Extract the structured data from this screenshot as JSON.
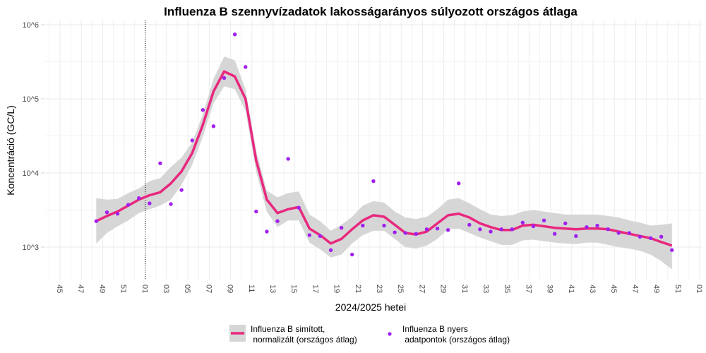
{
  "chart_data": {
    "type": "line",
    "title": "Influenza B szennyvízadatok lakosságarányos súlyozott országos átlaga",
    "xlabel": "2024/2025 hetei",
    "ylabel": "Koncentráció (GC/L)",
    "y_scale": "log10",
    "ylim": [
      372,
      1170000
    ],
    "xlim": [
      "2024-W45",
      "2026-W01"
    ],
    "grid": true,
    "legend_position": "bottom",
    "y_ticks": [
      {
        "value": 1000,
        "label": "10^3"
      },
      {
        "value": 10000,
        "label": "10^4"
      },
      {
        "value": 100000,
        "label": "10^5"
      },
      {
        "value": 1000000,
        "label": "10^6"
      }
    ],
    "x_ticks": [
      {
        "week": "2024-W45",
        "label": "45"
      },
      {
        "week": "2024-W47",
        "label": "47"
      },
      {
        "week": "2024-W49",
        "label": "49"
      },
      {
        "week": "2024-W51",
        "label": "51"
      },
      {
        "week": "2025-W01",
        "label": "01"
      },
      {
        "week": "2025-W03",
        "label": "03"
      },
      {
        "week": "2025-W05",
        "label": "05"
      },
      {
        "week": "2025-W07",
        "label": "07"
      },
      {
        "week": "2025-W09",
        "label": "09"
      },
      {
        "week": "2025-W11",
        "label": "11"
      },
      {
        "week": "2025-W13",
        "label": "13"
      },
      {
        "week": "2025-W15",
        "label": "15"
      },
      {
        "week": "2025-W17",
        "label": "17"
      },
      {
        "week": "2025-W19",
        "label": "19"
      },
      {
        "week": "2025-W21",
        "label": "21"
      },
      {
        "week": "2025-W23",
        "label": "23"
      },
      {
        "week": "2025-W25",
        "label": "25"
      },
      {
        "week": "2025-W27",
        "label": "27"
      },
      {
        "week": "2025-W29",
        "label": "29"
      },
      {
        "week": "2025-W31",
        "label": "31"
      },
      {
        "week": "2025-W33",
        "label": "33"
      },
      {
        "week": "2025-W35",
        "label": "35"
      },
      {
        "week": "2025-W37",
        "label": "37"
      },
      {
        "week": "2025-W39",
        "label": "39"
      },
      {
        "week": "2025-W41",
        "label": "41"
      },
      {
        "week": "2025-W43",
        "label": "43"
      },
      {
        "week": "2025-W45",
        "label": "45"
      },
      {
        "week": "2025-W47",
        "label": "47"
      },
      {
        "week": "2025-W49",
        "label": "49"
      },
      {
        "week": "2025-W51",
        "label": "51"
      },
      {
        "week": "2026-W01",
        "label": "01"
      }
    ],
    "vline": {
      "week": "2025-W01",
      "style": "dotted"
    },
    "weeks": [
      "2024-W48",
      "2024-W49",
      "2024-W50",
      "2024-W51",
      "2024-W52",
      "2025-W01",
      "2025-W02",
      "2025-W03",
      "2025-W04",
      "2025-W05",
      "2025-W06",
      "2025-W07",
      "2025-W08",
      "2025-W09",
      "2025-W10",
      "2025-W11",
      "2025-W12",
      "2025-W13",
      "2025-W14",
      "2025-W15",
      "2025-W16",
      "2025-W17",
      "2025-W18",
      "2025-W19",
      "2025-W20",
      "2025-W21",
      "2025-W22",
      "2025-W23",
      "2025-W24",
      "2025-W25",
      "2025-W26",
      "2025-W27",
      "2025-W28",
      "2025-W29",
      "2025-W30",
      "2025-W31",
      "2025-W32",
      "2025-W33",
      "2025-W34",
      "2025-W35",
      "2025-W36",
      "2025-W37",
      "2025-W38",
      "2025-W39",
      "2025-W40",
      "2025-W41",
      "2025-W42",
      "2025-W43",
      "2025-W44",
      "2025-W45",
      "2025-W46",
      "2025-W47",
      "2025-W48",
      "2025-W49",
      "2025-W50"
    ],
    "series": [
      {
        "name": "Influenza B simított,\n normalizált (országos átlag)",
        "kind": "smoothed-line",
        "color": "#e8287e",
        "values": [
          2240,
          2630,
          3020,
          3630,
          4370,
          5010,
          5500,
          7240,
          10500,
          18600,
          44700,
          126000,
          234000,
          200000,
          100000,
          14800,
          4370,
          2880,
          3240,
          3470,
          1780,
          1450,
          1120,
          1290,
          1740,
          2290,
          2690,
          2570,
          2000,
          1550,
          1480,
          1620,
          2090,
          2690,
          2820,
          2510,
          2090,
          1860,
          1700,
          1700,
          1950,
          2000,
          1910,
          1820,
          1780,
          1740,
          1780,
          1780,
          1740,
          1620,
          1510,
          1410,
          1320,
          1170,
          1050
        ],
        "ci_low": [
          1120,
          1550,
          1910,
          2290,
          2880,
          3240,
          3630,
          4370,
          6920,
          12900,
          30900,
          87100,
          148000,
          135000,
          69200,
          10500,
          3020,
          1860,
          2290,
          2290,
          1150,
          933,
          724,
          794,
          1120,
          1450,
          1660,
          1660,
          1290,
          1000,
          955,
          1050,
          1290,
          1740,
          1780,
          1550,
          1350,
          1200,
          1070,
          1070,
          1230,
          1260,
          1200,
          1150,
          1120,
          1100,
          1150,
          1150,
          1070,
          1000,
          955,
          891,
          794,
          646,
          501
        ],
        "ci_high": [
          4570,
          4370,
          4470,
          5370,
          6170,
          7760,
          8510,
          12000,
          16200,
          25700,
          61700,
          186000,
          372000,
          331000,
          135000,
          20000,
          5750,
          4680,
          5370,
          5620,
          2750,
          2240,
          1660,
          2000,
          2570,
          3630,
          4170,
          3980,
          3020,
          2510,
          2400,
          2570,
          3240,
          4370,
          4570,
          3890,
          3240,
          2750,
          2630,
          2690,
          3020,
          3160,
          3020,
          2880,
          2750,
          2750,
          2750,
          2750,
          2630,
          2510,
          2290,
          2140,
          1950,
          2000,
          2090
        ],
        "ci_color": "#d6d6d6"
      },
      {
        "name": "Influenza B nyers\n adatpontok (országos átlag)",
        "kind": "points",
        "color": "#a020f0",
        "values": [
          2240,
          2950,
          2820,
          3720,
          4570,
          3890,
          13500,
          3800,
          5890,
          27500,
          70800,
          42700,
          191000,
          741000,
          269000,
          3020,
          1620,
          2240,
          15500,
          3390,
          1450,
          1410,
          910,
          1820,
          794,
          1950,
          7760,
          1950,
          1580,
          1550,
          1510,
          1740,
          1780,
          1700,
          7240,
          2000,
          1740,
          1620,
          1740,
          1740,
          2140,
          1910,
          2290,
          1510,
          2090,
          1410,
          1860,
          1950,
          1740,
          1550,
          1550,
          1380,
          1320,
          1380,
          912
        ]
      }
    ]
  }
}
